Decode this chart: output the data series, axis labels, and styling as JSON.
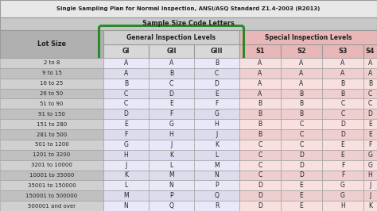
{
  "title": "Single Sampling Plan for Normal Inspection, ANSI/ASQ Standard Z1.4-2003 (R2013)",
  "subtitle": "Sample Size Code Letters",
  "rows": [
    [
      "2 to 8",
      "A",
      "A",
      "B",
      "A",
      "A",
      "A",
      "A"
    ],
    [
      "9 to 15",
      "A",
      "B",
      "C",
      "A",
      "A",
      "A",
      "A"
    ],
    [
      "16 to 25",
      "B",
      "C",
      "D",
      "A",
      "A",
      "B",
      "B"
    ],
    [
      "26 to 50",
      "C",
      "D",
      "E",
      "A",
      "B",
      "B",
      "C"
    ],
    [
      "51 to 90",
      "C",
      "E",
      "F",
      "B",
      "B",
      "C",
      "C"
    ],
    [
      "91 to 150",
      "D",
      "F",
      "G",
      "B",
      "B",
      "C",
      "D"
    ],
    [
      "151 to 280",
      "E",
      "G",
      "H",
      "B",
      "C",
      "D",
      "E"
    ],
    [
      "281 to 500",
      "F",
      "H",
      "J",
      "B",
      "C",
      "D",
      "E"
    ],
    [
      "501 to 1200",
      "G",
      "J",
      "K",
      "C",
      "C",
      "E",
      "F"
    ],
    [
      "1201 to 3200",
      "H",
      "K",
      "L",
      "C",
      "D",
      "E",
      "G"
    ],
    [
      "3201 to 10000",
      "J",
      "L",
      "M",
      "C",
      "D",
      "F",
      "G"
    ],
    [
      "10001 to 35000",
      "K",
      "M",
      "N",
      "C",
      "D",
      "F",
      "H"
    ],
    [
      "35001 to 150000",
      "L",
      "N",
      "P",
      "D",
      "E",
      "G",
      "J"
    ],
    [
      "150001 to 500000",
      "M",
      "P",
      "Q",
      "D",
      "E",
      "G",
      "J"
    ],
    [
      "500001 and over",
      "N",
      "Q",
      "R",
      "D",
      "E",
      "H",
      "K"
    ]
  ],
  "title_bg": "#e8e8e8",
  "subtitle_bg": "#c8c8c8",
  "lot_header_bg": "#b0b0b0",
  "gen_header_bg": "#d0d0d0",
  "spec_header_bg": "#e8b8b8",
  "gen_sub_bg": "#d8d8d8",
  "spec_sub_bg": "#e8b8b8",
  "lot_odd_bg": "#d0d0d0",
  "lot_even_bg": "#c0c0c0",
  "gen_odd_bg": "#e8e8f8",
  "gen_even_bg": "#dcdcec",
  "spec_odd_bg": "#f8e0e0",
  "spec_even_bg": "#eecece",
  "oval_color": "#2a8a2a",
  "edge_color": "#999999",
  "text_color": "#222222",
  "figw": 4.74,
  "figh": 2.66,
  "dpi": 100
}
